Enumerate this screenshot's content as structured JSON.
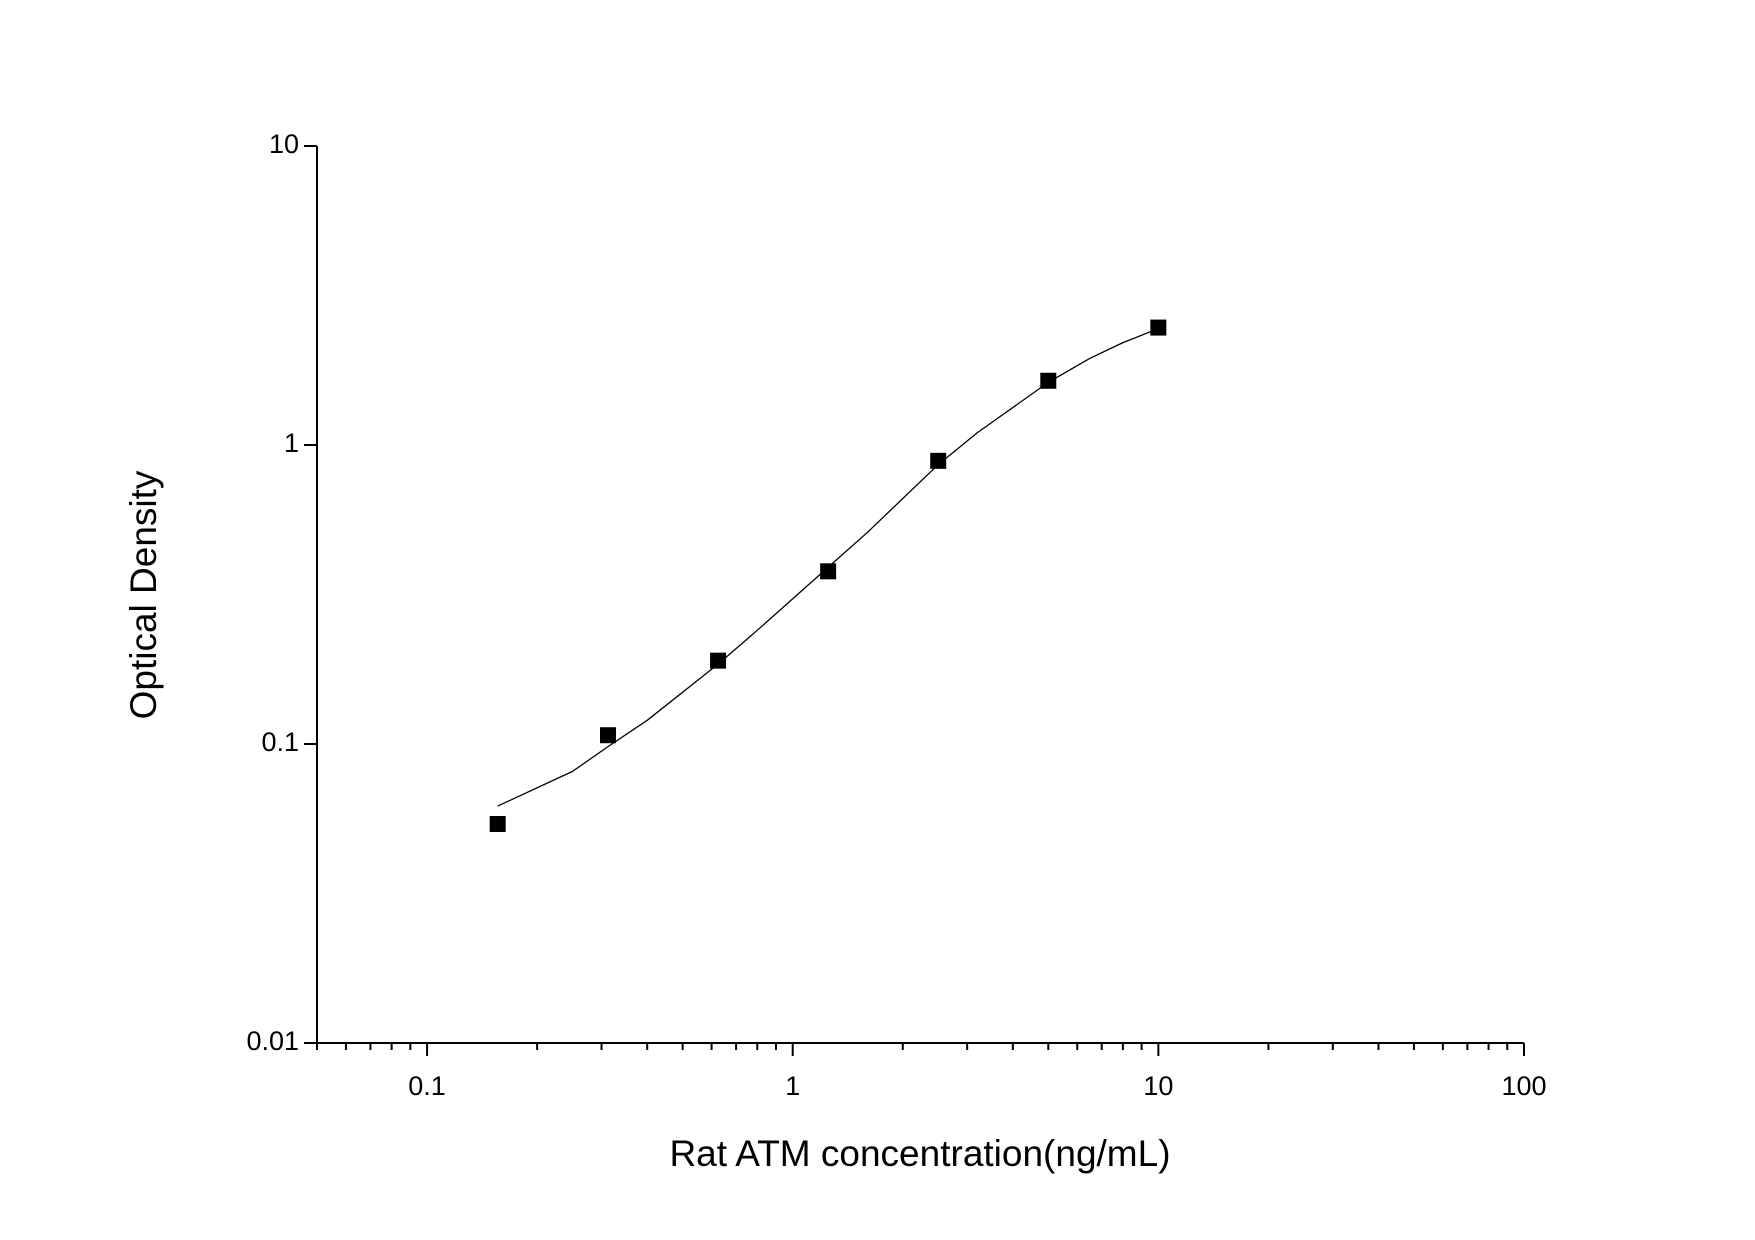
{
  "chart_data": {
    "type": "scatter",
    "x_label": "Rat ATM concentration(ng/mL)",
    "y_label": "Optical Density",
    "xscale": "log",
    "yscale": "log",
    "xlim": [
      0.05,
      100
    ],
    "ylim": [
      0.01,
      10
    ],
    "xticks": [
      0.1,
      1,
      10,
      100
    ],
    "xminorticks": [
      0.05,
      0.06,
      0.07,
      0.08,
      0.09,
      0.2,
      0.3,
      0.4,
      0.5,
      0.6,
      0.7,
      0.8,
      0.9,
      2,
      3,
      4,
      5,
      6,
      7,
      8,
      9,
      20,
      30,
      40,
      50,
      60,
      70,
      80,
      90
    ],
    "yticks": [
      0.01,
      0.1,
      1,
      10
    ],
    "series": [
      {
        "type": "scatter",
        "color": "#000000",
        "x": [
          0.156,
          0.3125,
          0.625,
          1.25,
          2.5,
          5,
          10
        ],
        "values": [
          0.054,
          0.107,
          0.19,
          0.378,
          0.885,
          1.64,
          2.47
        ]
      },
      {
        "type": "line",
        "color": "#000000",
        "x": [
          0.156,
          0.25,
          0.3125,
          0.4,
          0.625,
          0.8,
          1.25,
          1.6,
          2.5,
          3.2,
          5,
          6.5,
          8,
          10
        ],
        "values": [
          0.062,
          0.081,
          0.098,
          0.12,
          0.185,
          0.24,
          0.39,
          0.51,
          0.86,
          1.1,
          1.62,
          1.95,
          2.2,
          2.45
        ]
      }
    ]
  }
}
